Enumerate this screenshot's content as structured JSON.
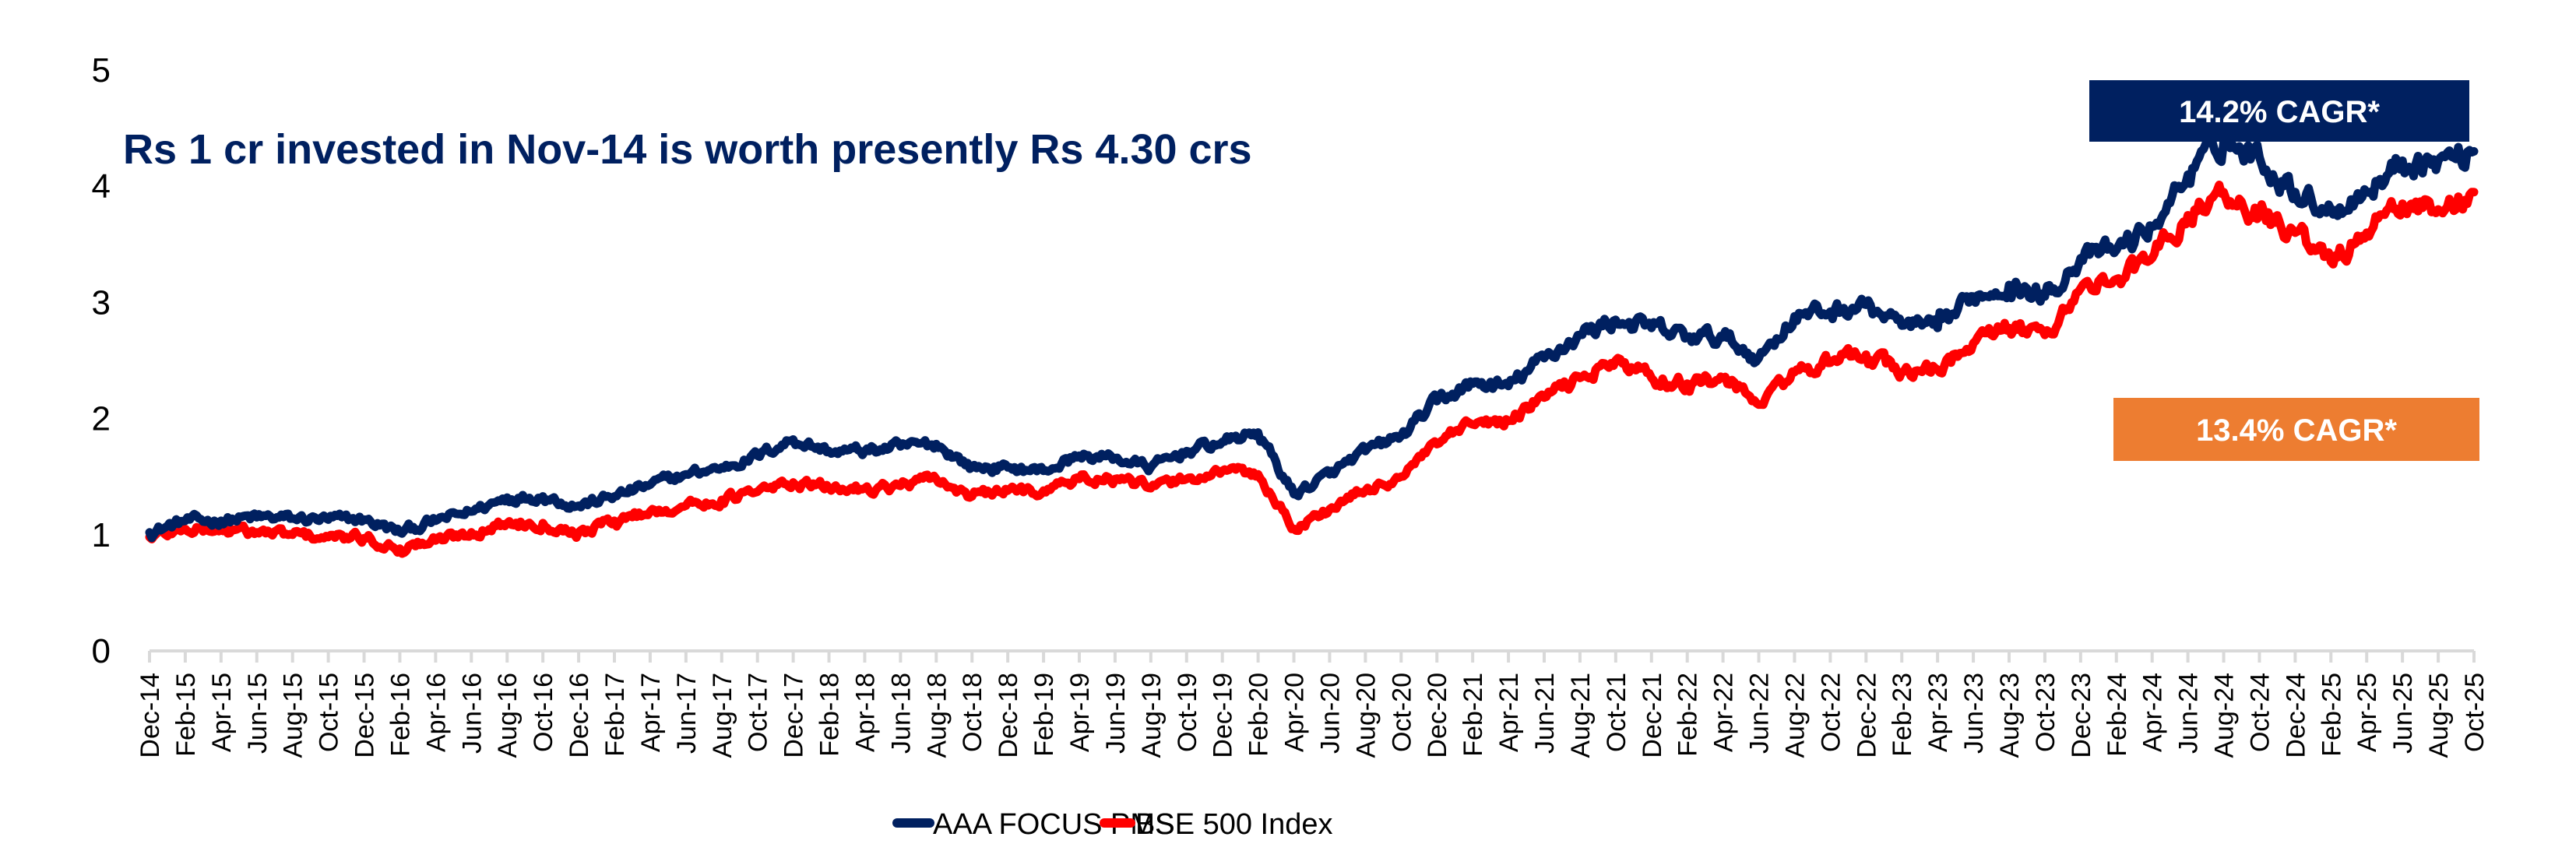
{
  "chart_data": {
    "type": "line",
    "title": "Rs 1 cr invested in Nov-14 is worth presently Rs 4.30 crs",
    "xlabel": "",
    "ylabel": "",
    "ylim": [
      0,
      5
    ],
    "yticks": [
      "0",
      "1",
      "2",
      "3",
      "4",
      "5"
    ],
    "grid": false,
    "legend_position": "bottom-center",
    "categories": [
      "Dec-14",
      "Feb-15",
      "Apr-15",
      "Jun-15",
      "Aug-15",
      "Oct-15",
      "Dec-15",
      "Feb-16",
      "Apr-16",
      "Jun-16",
      "Aug-16",
      "Oct-16",
      "Dec-16",
      "Feb-17",
      "Apr-17",
      "Jun-17",
      "Aug-17",
      "Oct-17",
      "Dec-17",
      "Feb-18",
      "Apr-18",
      "Jun-18",
      "Aug-18",
      "Oct-18",
      "Dec-18",
      "Feb-19",
      "Apr-19",
      "Jun-19",
      "Aug-19",
      "Oct-19",
      "Dec-19",
      "Feb-20",
      "Apr-20",
      "Jun-20",
      "Aug-20",
      "Oct-20",
      "Dec-20",
      "Feb-21",
      "Apr-21",
      "Jun-21",
      "Aug-21",
      "Oct-21",
      "Dec-21",
      "Feb-22",
      "Apr-22",
      "Jun-22",
      "Aug-22",
      "Oct-22",
      "Dec-22",
      "Feb-23",
      "Apr-23",
      "Jun-23",
      "Aug-23",
      "Oct-23",
      "Dec-23",
      "Feb-24",
      "Apr-24",
      "Jun-24",
      "Aug-24",
      "Oct-24",
      "Dec-24",
      "Feb-25",
      "Apr-25",
      "Jun-25",
      "Aug-25",
      "Oct-25"
    ],
    "series": [
      {
        "name": "AAA FOCUS PMS",
        "color": "#002060",
        "values": [
          1.02,
          1.12,
          1.12,
          1.15,
          1.14,
          1.13,
          1.13,
          1.02,
          1.12,
          1.2,
          1.32,
          1.33,
          1.25,
          1.33,
          1.43,
          1.52,
          1.58,
          1.68,
          1.82,
          1.72,
          1.72,
          1.76,
          1.78,
          1.58,
          1.58,
          1.55,
          1.68,
          1.66,
          1.58,
          1.72,
          1.8,
          1.88,
          1.35,
          1.52,
          1.72,
          1.85,
          2.15,
          2.3,
          2.28,
          2.52,
          2.72,
          2.85,
          2.78,
          2.7,
          2.7,
          2.52,
          2.88,
          2.92,
          2.98,
          2.8,
          2.78,
          3.05,
          3.15,
          3.05,
          3.38,
          3.45,
          3.65,
          4.1,
          4.38,
          4.25,
          3.95,
          3.8,
          3.95,
          4.22,
          4.22,
          4.3
        ]
      },
      {
        "name": "BSE 500 Index",
        "color": "#FF0000",
        "values": [
          0.98,
          1.05,
          1.04,
          1.02,
          1.0,
          0.98,
          0.97,
          0.88,
          0.95,
          1.02,
          1.1,
          1.1,
          1.02,
          1.12,
          1.2,
          1.25,
          1.3,
          1.37,
          1.45,
          1.4,
          1.4,
          1.42,
          1.48,
          1.33,
          1.38,
          1.38,
          1.48,
          1.48,
          1.4,
          1.48,
          1.55,
          1.52,
          1.05,
          1.22,
          1.38,
          1.5,
          1.78,
          1.95,
          1.98,
          2.18,
          2.35,
          2.5,
          2.35,
          2.3,
          2.35,
          2.12,
          2.4,
          2.48,
          2.55,
          2.4,
          2.42,
          2.65,
          2.78,
          2.72,
          3.12,
          3.2,
          3.38,
          3.75,
          3.95,
          3.75,
          3.6,
          3.35,
          3.6,
          3.85,
          3.8,
          3.95
        ]
      }
    ],
    "annotations": [
      {
        "text": "14.2% CAGR*",
        "series": "AAA FOCUS PMS",
        "background": "#002060",
        "color": "#FFFFFF"
      },
      {
        "text": "13.4% CAGR*",
        "series": "BSE 500 Index",
        "background": "#ED7D31",
        "color": "#FFFFFF"
      }
    ],
    "axis_color": "#D9D9D9"
  }
}
